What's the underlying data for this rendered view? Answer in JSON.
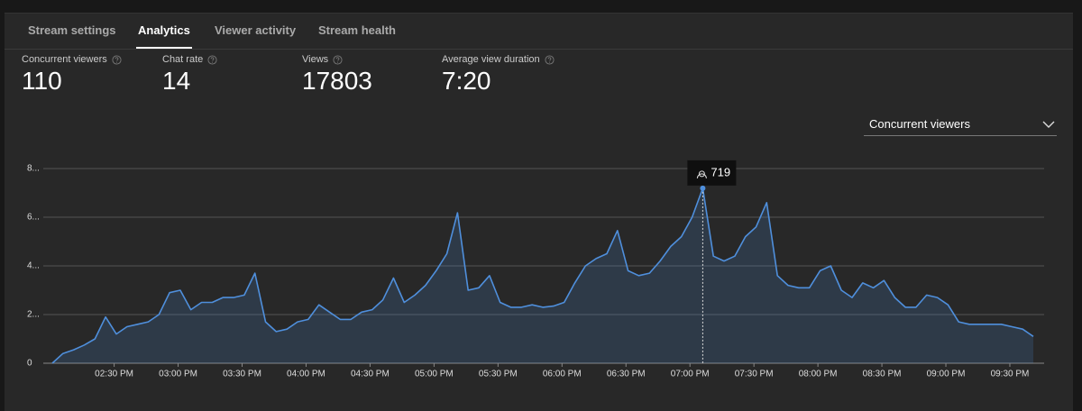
{
  "tabs": [
    {
      "label": "Stream settings",
      "active": false
    },
    {
      "label": "Analytics",
      "active": true
    },
    {
      "label": "Viewer activity",
      "active": false
    },
    {
      "label": "Stream health",
      "active": false
    }
  ],
  "stats": [
    {
      "label": "Concurrent viewers",
      "value": 110
    },
    {
      "label": "Chat rate",
      "value": 14
    },
    {
      "label": "Views",
      "value": 17803
    },
    {
      "label": "Average view duration",
      "value": "7:20"
    }
  ],
  "dropdown": {
    "label": "Concurrent viewers"
  },
  "chart_data": {
    "type": "area",
    "series": [
      {
        "name": "Concurrent viewers",
        "color": "#4f8fdc",
        "x": [
          121,
          126,
          131,
          136,
          141,
          146,
          151,
          156,
          161,
          166,
          171,
          176,
          181,
          186,
          191,
          196,
          201,
          206,
          211,
          216,
          221,
          226,
          231,
          236,
          241,
          246,
          251,
          256,
          261,
          266,
          271,
          276,
          281,
          286,
          291,
          296,
          301,
          306,
          311,
          316,
          321,
          326,
          331,
          336,
          341,
          346,
          351,
          356,
          361,
          366,
          371,
          376,
          381,
          386,
          391,
          396,
          401,
          406,
          411,
          416,
          421,
          426,
          431,
          436,
          441,
          446,
          451,
          456,
          461,
          466,
          471,
          476,
          481,
          486,
          491,
          496,
          501,
          506,
          511,
          516,
          521,
          526,
          531,
          536,
          541,
          546,
          551,
          556,
          561,
          566,
          571,
          576,
          581
        ],
        "values": [
          0,
          40,
          55,
          75,
          100,
          190,
          120,
          150,
          160,
          170,
          200,
          290,
          300,
          220,
          250,
          250,
          270,
          270,
          280,
          370,
          170,
          130,
          140,
          170,
          180,
          240,
          210,
          180,
          180,
          210,
          220,
          260,
          350,
          250,
          280,
          320,
          380,
          450,
          618,
          300,
          310,
          360,
          250,
          230,
          230,
          240,
          230,
          235,
          250,
          330,
          400,
          430,
          450,
          545,
          380,
          360,
          370,
          420,
          480,
          520,
          600,
          719,
          440,
          420,
          440,
          520,
          560,
          660,
          360,
          320,
          310,
          310,
          380,
          400,
          300,
          270,
          330,
          310,
          340,
          270,
          230,
          230,
          280,
          270,
          240,
          170,
          160,
          160,
          160,
          160,
          150,
          140,
          110
        ]
      }
    ],
    "xlim": [
      121,
      581
    ],
    "xticks": [
      {
        "value": 150,
        "label": "02:30 PM"
      },
      {
        "value": 180,
        "label": "03:00 PM"
      },
      {
        "value": 210,
        "label": "03:30 PM"
      },
      {
        "value": 240,
        "label": "04:00 PM"
      },
      {
        "value": 270,
        "label": "04:30 PM"
      },
      {
        "value": 300,
        "label": "05:00 PM"
      },
      {
        "value": 330,
        "label": "05:30 PM"
      },
      {
        "value": 360,
        "label": "06:00 PM"
      },
      {
        "value": 390,
        "label": "06:30 PM"
      },
      {
        "value": 420,
        "label": "07:00 PM"
      },
      {
        "value": 450,
        "label": "07:30 PM"
      },
      {
        "value": 480,
        "label": "08:00 PM"
      },
      {
        "value": 510,
        "label": "08:30 PM"
      },
      {
        "value": 540,
        "label": "09:00 PM"
      },
      {
        "value": 570,
        "label": "09:30 PM"
      }
    ],
    "ylim": [
      0,
      800
    ],
    "yticks": [
      0,
      {
        "value": 200,
        "label": "2..."
      },
      {
        "value": 400,
        "label": "4..."
      },
      {
        "value": 600,
        "label": "6..."
      },
      {
        "value": 800,
        "label": "8..."
      }
    ],
    "grid": true,
    "tooltip": {
      "x": 426,
      "value": 719
    }
  }
}
